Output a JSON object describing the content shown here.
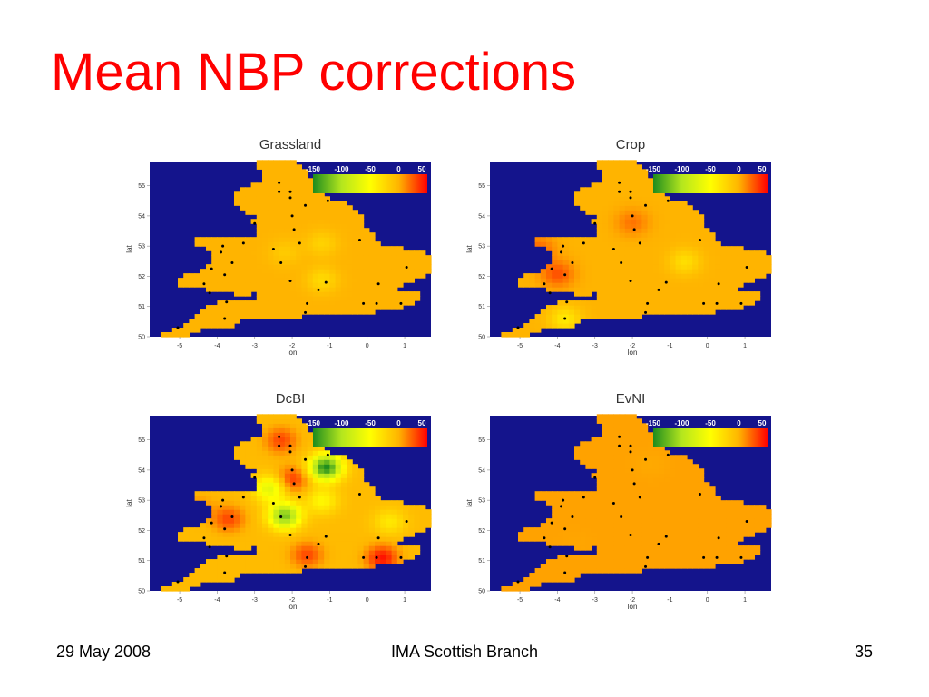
{
  "slide": {
    "title": "Mean NBP corrections",
    "footer_left": "29 May 2008",
    "footer_center": "IMA Scottish Branch",
    "footer_right": "35"
  },
  "colors": {
    "title": "#ff0000",
    "background": "#ffffff",
    "sea": "#14148c",
    "colorscale": [
      "#1e8c1e",
      "#b4e61e",
      "#ffff00",
      "#ffb400",
      "#ff0000"
    ]
  },
  "chart_data": [
    {
      "type": "heatmap",
      "title": "Grassland",
      "xlabel": "lon",
      "ylabel": "lat",
      "xlim": [
        -5.8,
        1.7
      ],
      "ylim": [
        50,
        55.8
      ],
      "xticks": [
        -5,
        -4,
        -3,
        -2,
        -1,
        0,
        1
      ],
      "yticks": [
        50,
        51,
        52,
        53,
        54,
        55
      ],
      "colorbar": {
        "ticks": [
          -150,
          -100,
          -50,
          0,
          50
        ],
        "range": [
          -150,
          50
        ],
        "position": "top-right"
      },
      "base_value": 0,
      "anomalies": [
        {
          "lon": -1.2,
          "lat": 53.1,
          "value": -20
        },
        {
          "lon": -1.2,
          "lat": 51.9,
          "value": -25
        },
        {
          "lon": -2.2,
          "lat": 52.8,
          "value": -15
        }
      ]
    },
    {
      "type": "heatmap",
      "title": "Crop",
      "xlabel": "lon",
      "ylabel": "lat",
      "xlim": [
        -5.8,
        1.7
      ],
      "ylim": [
        50,
        55.8
      ],
      "xticks": [
        -5,
        -4,
        -3,
        -2,
        -1,
        0,
        1
      ],
      "yticks": [
        50,
        51,
        52,
        53,
        54,
        55
      ],
      "colorbar": {
        "ticks": [
          -150,
          -100,
          -50,
          0,
          50
        ],
        "range": [
          -150,
          50
        ],
        "position": "top-right"
      },
      "base_value": 0,
      "anomalies": [
        {
          "lon": -4.0,
          "lat": 52.1,
          "value": 28
        },
        {
          "lon": -4.5,
          "lat": 52.9,
          "value": 22
        },
        {
          "lon": -2.0,
          "lat": 53.8,
          "value": 18
        },
        {
          "lon": -0.6,
          "lat": 52.5,
          "value": -28
        },
        {
          "lon": -3.8,
          "lat": 50.6,
          "value": -35
        }
      ]
    },
    {
      "type": "heatmap",
      "title": "DcBI",
      "xlabel": "lon",
      "ylabel": "lat",
      "xlim": [
        -5.8,
        1.7
      ],
      "ylim": [
        50,
        55.8
      ],
      "xticks": [
        -5,
        -4,
        -3,
        -2,
        -1,
        0,
        1
      ],
      "yticks": [
        50,
        51,
        52,
        53,
        54,
        55
      ],
      "colorbar": {
        "ticks": [
          -150,
          -100,
          -50,
          0,
          50
        ],
        "range": [
          -150,
          50
        ],
        "position": "top-right"
      },
      "base_value": -5,
      "anomalies": [
        {
          "lon": -1.1,
          "lat": 54.1,
          "value": -150
        },
        {
          "lon": -2.2,
          "lat": 52.5,
          "value": -120
        },
        {
          "lon": -2.6,
          "lat": 53.4,
          "value": -70
        },
        {
          "lon": -1.2,
          "lat": 53.0,
          "value": -45
        },
        {
          "lon": 0.4,
          "lat": 51.1,
          "value": 45
        },
        {
          "lon": -1.6,
          "lat": 51.2,
          "value": 30
        },
        {
          "lon": -3.7,
          "lat": 52.4,
          "value": 30
        },
        {
          "lon": -2.3,
          "lat": 55.0,
          "value": 30
        },
        {
          "lon": -2.0,
          "lat": 53.7,
          "value": 35
        },
        {
          "lon": -4.5,
          "lat": 52.8,
          "value": 10
        },
        {
          "lon": 0.6,
          "lat": 52.3,
          "value": -35
        }
      ]
    },
    {
      "type": "heatmap",
      "title": "EvNI",
      "xlabel": "lon",
      "ylabel": "lat",
      "xlim": [
        -5.8,
        1.7
      ],
      "ylim": [
        50,
        55.8
      ],
      "xticks": [
        -5,
        -4,
        -3,
        -2,
        -1,
        0,
        1
      ],
      "yticks": [
        50,
        51,
        52,
        53,
        54,
        55
      ],
      "colorbar": {
        "ticks": [
          -150,
          -100,
          -50,
          0,
          50
        ],
        "range": [
          -150,
          50
        ],
        "position": "top-right"
      },
      "base_value": 5,
      "anomalies": [
        {
          "lon": -1.5,
          "lat": 54.2,
          "value": 3
        },
        {
          "lon": -3.5,
          "lat": 51.6,
          "value": 4
        }
      ]
    }
  ]
}
